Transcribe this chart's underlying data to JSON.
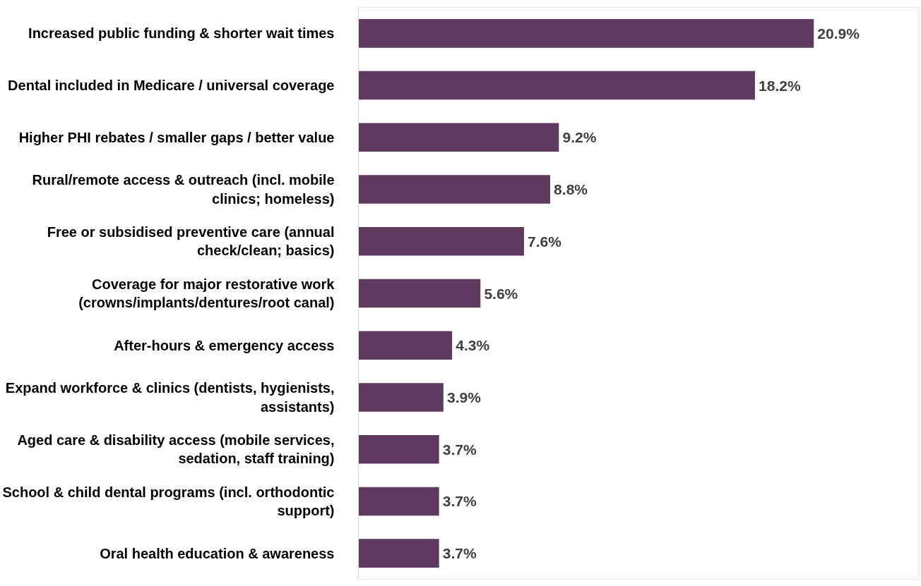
{
  "chart_data": {
    "type": "bar",
    "orientation": "horizontal",
    "grid": false,
    "categories": [
      "Increased public funding & shorter wait times",
      "Dental included in Medicare / universal coverage",
      "Higher PHI rebates / smaller gaps / better value",
      "Rural/remote access & outreach (incl. mobile clinics; homeless)",
      "Free or subsidised preventive care (annual check/clean; basics)",
      "Coverage for major restorative work (crowns/implants/dentures/root canal)",
      "After-hours & emergency access",
      "Expand workforce & clinics (dentists, hygienists, assistants)",
      "Aged care & disability access (mobile services, sedation, staff training)",
      "School & child dental programs (incl. orthodontic support)",
      "Oral health education & awareness"
    ],
    "series": [
      {
        "color": "#5e3a5e",
        "values": [
          20.9,
          18.2,
          9.2,
          8.8,
          7.6,
          5.6,
          4.3,
          3.9,
          3.7,
          3.7,
          3.7
        ],
        "value_labels": [
          "20.9%",
          "18.2%",
          "9.2%",
          "8.8%",
          "7.6%",
          "5.6%",
          "4.3%",
          "3.9%",
          "3.7%",
          "3.7%",
          "3.7%"
        ]
      }
    ]
  }
}
